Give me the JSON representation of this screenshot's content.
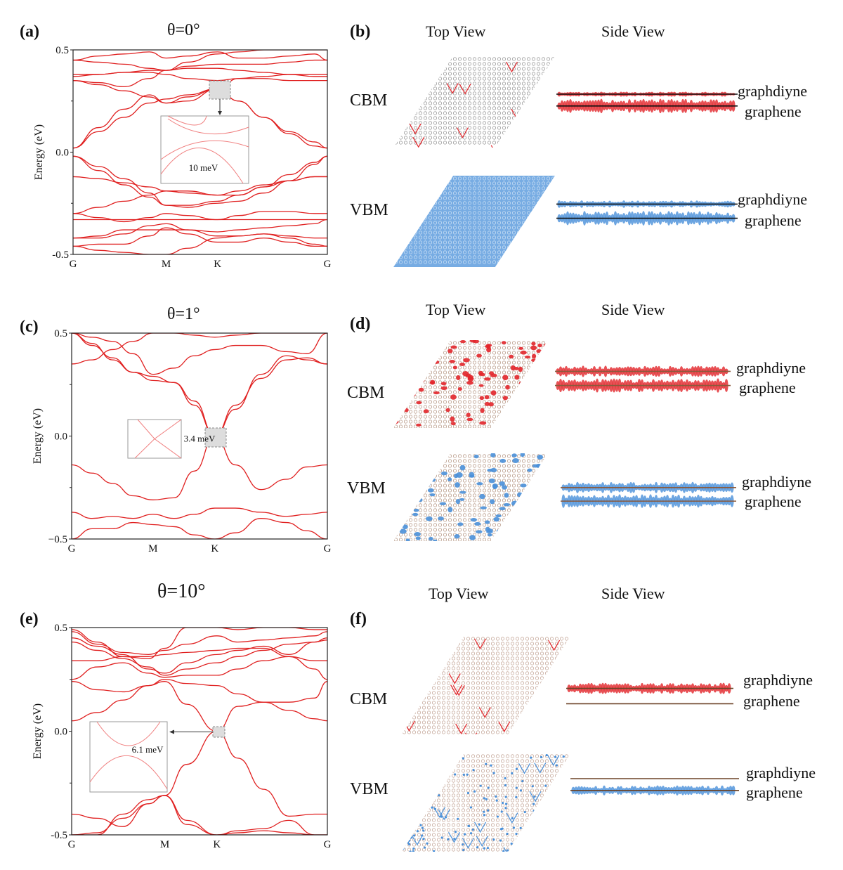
{
  "figure": {
    "rows": [
      {
        "band_panel_label": "(a)",
        "title": "θ=0°",
        "view_panel_label": "(b)",
        "top_view_header": "Top View",
        "side_view_header": "Side View",
        "states": [
          {
            "name": "CBM",
            "upper_layer": "graphdiyne",
            "lower_layer": "graphene",
            "color": "#e2262b"
          },
          {
            "name": "VBM",
            "upper_layer": "graphdiyne",
            "lower_layer": "graphene",
            "color": "#4a90d9"
          }
        ]
      },
      {
        "band_panel_label": "(c)",
        "title": "θ=1°",
        "view_panel_label": "(d)",
        "top_view_header": "Top View",
        "side_view_header": "Side View",
        "states": [
          {
            "name": "CBM",
            "upper_layer": "graphdiyne",
            "lower_layer": "graphene",
            "color": "#e2262b"
          },
          {
            "name": "VBM",
            "upper_layer": "graphdiyne",
            "lower_layer": "graphene",
            "color": "#4a90d9"
          }
        ]
      },
      {
        "band_panel_label": "(e)",
        "title": "θ=10°",
        "view_panel_label": "(f)",
        "top_view_header": "Top View",
        "side_view_header": "Side View",
        "states": [
          {
            "name": "CBM",
            "upper_layer": "graphdiyne",
            "lower_layer": "graphene",
            "color": "#e2262b"
          },
          {
            "name": "VBM",
            "upper_layer": "graphdiyne",
            "lower_layer": "graphene",
            "color": "#4a90d9"
          }
        ]
      }
    ]
  },
  "chart_data": [
    {
      "type": "line",
      "title": "θ=0°",
      "panel": "(a)",
      "xlabel": "",
      "ylabel": "Energy (eV)",
      "ylim": [
        -0.5,
        0.5
      ],
      "yticks": [
        "-0.5",
        "0.0",
        "0.5"
      ],
      "kpath": [
        "G",
        "M",
        "K",
        "G"
      ],
      "kpos": [
        0,
        0.366,
        0.568,
        1
      ],
      "line_color": "#e02020",
      "inset": {
        "label": "10 meV",
        "zoom_at": "K",
        "zoom_energy": 0.31
      },
      "x": [
        0,
        0.1,
        0.2,
        0.3,
        0.366,
        0.45,
        0.568,
        0.65,
        0.75,
        0.85,
        0.95,
        1
      ],
      "series": [
        {
          "name": "band1",
          "values": [
            0.02,
            0.1,
            0.17,
            0.24,
            0.26,
            0.28,
            0.31,
            0.25,
            0.17,
            0.09,
            0.03,
            0.02
          ]
        },
        {
          "name": "band2",
          "values": [
            0.02,
            0.12,
            0.21,
            0.28,
            0.24,
            0.25,
            0.31,
            0.25,
            0.17,
            0.1,
            0.05,
            0.02
          ]
        },
        {
          "name": "band3",
          "values": [
            0.35,
            0.33,
            0.3,
            0.27,
            0.24,
            0.27,
            0.31,
            0.36,
            0.36,
            0.35,
            0.35,
            0.35
          ]
        },
        {
          "name": "band4",
          "values": [
            0.35,
            0.34,
            0.32,
            0.36,
            0.4,
            0.44,
            0.48,
            0.49,
            0.5,
            0.5,
            0.5,
            0.5
          ]
        },
        {
          "name": "band5",
          "values": [
            0.38,
            0.38,
            0.39,
            0.39,
            0.38,
            0.36,
            0.35,
            0.36,
            0.37,
            0.38,
            0.38,
            0.38
          ]
        },
        {
          "name": "band6",
          "values": [
            0.37,
            0.38,
            0.39,
            0.4,
            0.4,
            0.41,
            0.41,
            0.4,
            0.39,
            0.38,
            0.37,
            0.37
          ]
        },
        {
          "name": "band7",
          "values": [
            0.45,
            0.44,
            0.43,
            0.41,
            0.4,
            0.42,
            0.43,
            0.43,
            0.43,
            0.44,
            0.45,
            0.45
          ]
        },
        {
          "name": "band8",
          "values": [
            0.45,
            0.47,
            0.48,
            0.49,
            0.46,
            0.47,
            0.49,
            0.46,
            0.46,
            0.47,
            0.48,
            0.45
          ]
        },
        {
          "name": "band9",
          "values": [
            -0.02,
            -0.07,
            -0.13,
            -0.2,
            -0.26,
            -0.26,
            -0.24,
            -0.21,
            -0.17,
            -0.11,
            -0.05,
            -0.02
          ]
        },
        {
          "name": "band10",
          "values": [
            -0.02,
            -0.09,
            -0.16,
            -0.22,
            -0.26,
            -0.27,
            -0.25,
            -0.24,
            -0.2,
            -0.14,
            -0.06,
            -0.02
          ]
        },
        {
          "name": "band11",
          "values": [
            -0.12,
            -0.13,
            -0.15,
            -0.17,
            -0.19,
            -0.19,
            -0.21,
            -0.21,
            -0.17,
            -0.14,
            -0.12,
            -0.12
          ]
        },
        {
          "name": "band12",
          "values": [
            -0.3,
            -0.27,
            -0.24,
            -0.21,
            -0.19,
            -0.2,
            -0.21,
            -0.19,
            -0.16,
            -0.14,
            -0.12,
            -0.12
          ]
        },
        {
          "name": "band13",
          "values": [
            -0.3,
            -0.32,
            -0.34,
            -0.32,
            -0.3,
            -0.31,
            -0.33,
            -0.31,
            -0.29,
            -0.29,
            -0.3,
            -0.3
          ]
        },
        {
          "name": "band14",
          "values": [
            -0.33,
            -0.33,
            -0.33,
            -0.33,
            -0.33,
            -0.33,
            -0.33,
            -0.33,
            -0.33,
            -0.33,
            -0.33,
            -0.33
          ]
        },
        {
          "name": "band15",
          "values": [
            -0.42,
            -0.41,
            -0.38,
            -0.38,
            -0.38,
            -0.38,
            -0.39,
            -0.38,
            -0.37,
            -0.36,
            -0.35,
            -0.33
          ]
        },
        {
          "name": "band16",
          "values": [
            -0.42,
            -0.42,
            -0.4,
            -0.36,
            -0.35,
            -0.38,
            -0.41,
            -0.41,
            -0.4,
            -0.41,
            -0.42,
            -0.42
          ]
        },
        {
          "name": "band17",
          "values": [
            -0.46,
            -0.45,
            -0.45,
            -0.41,
            -0.37,
            -0.4,
            -0.44,
            -0.44,
            -0.42,
            -0.44,
            -0.46,
            -0.46
          ]
        },
        {
          "name": "band18",
          "values": [
            -0.46,
            -0.48,
            -0.49,
            -0.5,
            -0.5,
            -0.47,
            -0.42,
            -0.41,
            -0.4,
            -0.42,
            -0.45,
            -0.46
          ]
        }
      ]
    },
    {
      "type": "line",
      "title": "θ=1°",
      "panel": "(c)",
      "xlabel": "",
      "ylabel": "Energy (eV)",
      "ylim": [
        -0.5,
        0.5
      ],
      "yticks": [
        "−0.5",
        "0.0",
        "0.5"
      ],
      "kpath": [
        "G",
        "M",
        "K",
        "G"
      ],
      "kpos": [
        0,
        0.318,
        0.56,
        1
      ],
      "line_color": "#e02020",
      "inset": {
        "label": "3.4 meV",
        "zoom_at": "K",
        "zoom_energy": 0.0
      },
      "x": [
        0,
        0.08,
        0.16,
        0.24,
        0.318,
        0.4,
        0.48,
        0.56,
        0.64,
        0.74,
        0.84,
        0.92,
        1
      ],
      "series": [
        {
          "name": "band1",
          "values": [
            0.35,
            0.37,
            0.42,
            0.46,
            0.5,
            0.5,
            0.49,
            0.48,
            0.49,
            0.5,
            0.5,
            0.5,
            0.5
          ]
        },
        {
          "name": "band2",
          "values": [
            0.5,
            0.45,
            0.37,
            0.31,
            0.29,
            0.26,
            0.15,
            0.0,
            -0.14,
            -0.26,
            -0.21,
            -0.15,
            -0.14
          ]
        },
        {
          "name": "band3",
          "values": [
            0.5,
            0.44,
            0.38,
            0.31,
            0.27,
            0.26,
            0.17,
            0.0,
            0.13,
            0.3,
            0.39,
            0.37,
            0.35
          ]
        },
        {
          "name": "band4",
          "values": [
            0.5,
            0.48,
            0.46,
            0.4,
            0.3,
            0.33,
            0.39,
            0.42,
            0.44,
            0.44,
            0.41,
            0.4,
            0.5
          ]
        },
        {
          "name": "band5",
          "values": [
            -0.14,
            -0.18,
            -0.23,
            -0.29,
            -0.31,
            -0.3,
            -0.17,
            0.0,
            0.15,
            0.28,
            0.37,
            0.38,
            0.35
          ]
        },
        {
          "name": "band6",
          "values": [
            -0.37,
            -0.4,
            -0.39,
            -0.4,
            -0.38,
            -0.4,
            -0.38,
            -0.35,
            -0.35,
            -0.37,
            -0.39,
            -0.38,
            -0.37
          ]
        },
        {
          "name": "band7",
          "values": [
            -0.5,
            -0.45,
            -0.45,
            -0.42,
            -0.43,
            -0.44,
            -0.48,
            -0.5,
            -0.47,
            -0.4,
            -0.42,
            -0.46,
            -0.5
          ]
        }
      ]
    },
    {
      "type": "line",
      "title": "θ=10°",
      "panel": "(e)",
      "xlabel": "",
      "ylabel": "Energy (eV)",
      "ylim": [
        -0.5,
        0.5
      ],
      "yticks": [
        "-0.5",
        "0.0",
        "0.5"
      ],
      "kpath": [
        "G",
        "M",
        "K",
        "G"
      ],
      "kpos": [
        0,
        0.364,
        0.568,
        1
      ],
      "line_color": "#e02020",
      "inset": {
        "label": "6.1 meV",
        "zoom_at": "K",
        "zoom_energy": 0.0
      },
      "x": [
        0,
        0.1,
        0.2,
        0.3,
        0.364,
        0.45,
        0.568,
        0.65,
        0.75,
        0.85,
        0.95,
        1
      ],
      "series": [
        {
          "name": "band1",
          "values": [
            0.05,
            0.09,
            0.15,
            0.22,
            0.24,
            0.13,
            0.0,
            0.12,
            0.14,
            0.14,
            0.16,
            0.24
          ]
        },
        {
          "name": "band2",
          "values": [
            0.24,
            0.2,
            0.19,
            0.22,
            0.25,
            0.23,
            0.22,
            0.18,
            0.14,
            0.1,
            0.06,
            0.05
          ]
        },
        {
          "name": "band3",
          "values": [
            0.25,
            0.31,
            0.33,
            0.28,
            0.26,
            0.27,
            0.27,
            0.3,
            0.34,
            0.36,
            0.3,
            0.25
          ]
        },
        {
          "name": "band4",
          "values": [
            0.34,
            0.34,
            0.36,
            0.36,
            0.37,
            0.38,
            0.39,
            0.4,
            0.4,
            0.36,
            0.34,
            0.34
          ]
        },
        {
          "name": "band5",
          "values": [
            0.43,
            0.39,
            0.35,
            0.31,
            0.27,
            0.3,
            0.33,
            0.36,
            0.39,
            0.42,
            0.43,
            0.44
          ]
        },
        {
          "name": "band6",
          "values": [
            0.45,
            0.41,
            0.37,
            0.3,
            0.28,
            0.33,
            0.37,
            0.39,
            0.41,
            0.37,
            0.43,
            0.45
          ]
        },
        {
          "name": "band7",
          "values": [
            0.48,
            0.42,
            0.38,
            0.37,
            0.39,
            0.42,
            0.46,
            0.43,
            0.44,
            0.45,
            0.46,
            0.48
          ]
        },
        {
          "name": "band8",
          "values": [
            0.49,
            0.43,
            0.36,
            0.35,
            0.4,
            0.5,
            0.5,
            0.49,
            0.5,
            0.5,
            0.49,
            0.49
          ]
        },
        {
          "name": "band9",
          "values": [
            -0.4,
            -0.42,
            -0.46,
            -0.35,
            -0.31,
            -0.43,
            -0.5,
            -0.49,
            -0.48,
            -0.49,
            -0.5,
            -0.5
          ]
        },
        {
          "name": "band10",
          "values": [
            -0.5,
            -0.5,
            -0.4,
            -0.33,
            -0.31,
            -0.16,
            0.0,
            -0.13,
            -0.28,
            -0.41,
            -0.4,
            -0.4
          ]
        },
        {
          "name": "band11",
          "values": [
            -0.5,
            -0.49,
            -0.42,
            -0.35,
            -0.31,
            -0.45,
            -0.5,
            -0.48,
            -0.47,
            -0.43,
            -0.5,
            -0.5
          ]
        }
      ]
    }
  ]
}
